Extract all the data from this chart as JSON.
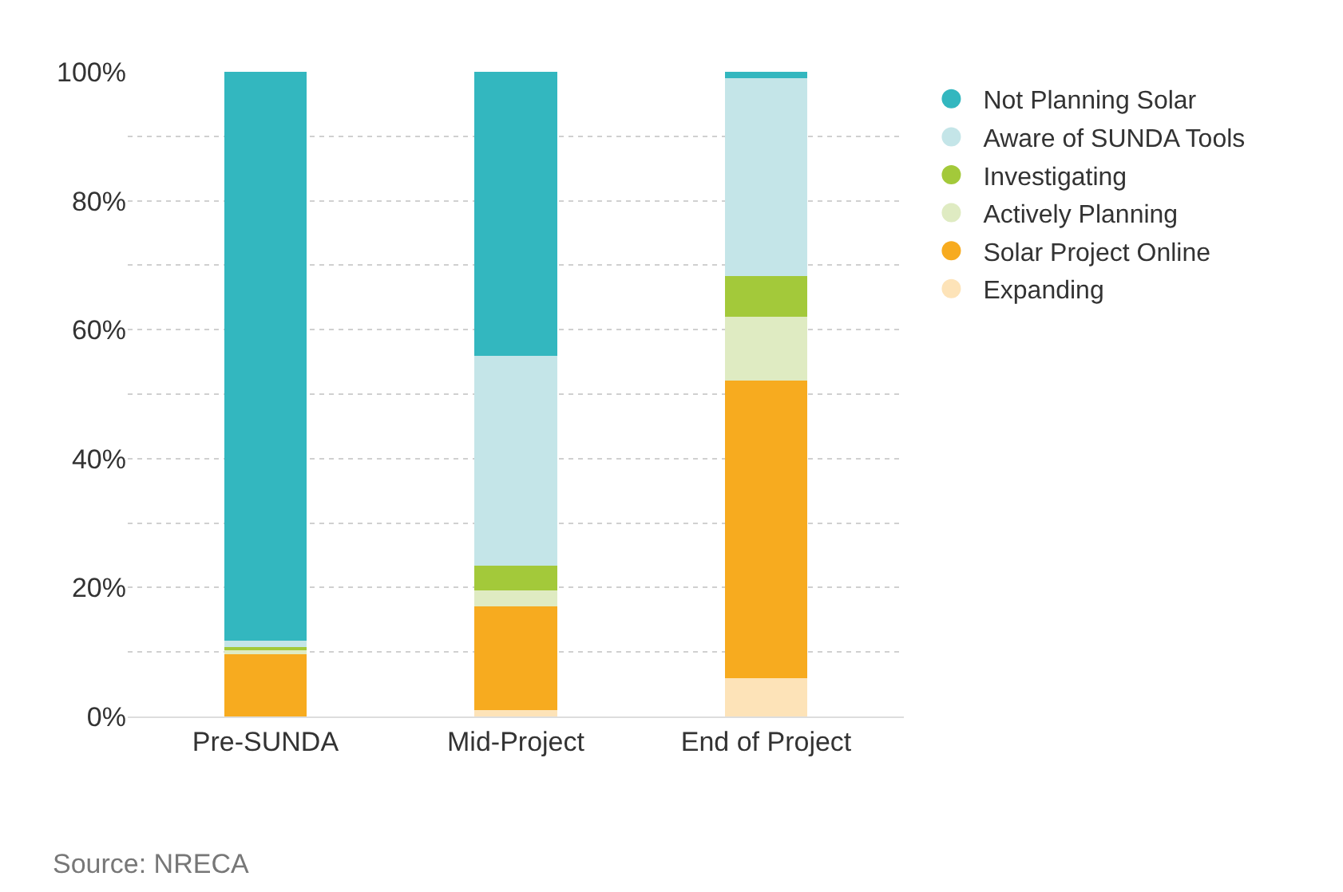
{
  "chart_data": {
    "type": "bar",
    "stacked": true,
    "categories": [
      "Pre-SUNDA",
      "Mid-Project",
      "End of Project"
    ],
    "series": [
      {
        "name": "Expanding",
        "color": "#fde3b8",
        "values": [
          null,
          1.0,
          5.9
        ]
      },
      {
        "name": "Solar Project Online",
        "color": "#f7ab1f",
        "values": [
          9.6,
          16.1,
          46.2
        ]
      },
      {
        "name": "Actively Planning",
        "color": "#dfebc2",
        "values": [
          0.7,
          2.4,
          9.9
        ]
      },
      {
        "name": "Investigating",
        "color": "#a3c93a",
        "values": [
          0.5,
          3.9,
          6.3
        ]
      },
      {
        "name": "Aware of SUNDA Tools",
        "color": "#c4e5e8",
        "values": [
          1.0,
          32.6,
          30.7
        ]
      },
      {
        "name": "Not Planning Solar",
        "color": "#33b7bf",
        "values": [
          88.2,
          44.0,
          1.0
        ]
      }
    ],
    "ylim": [
      0,
      100
    ],
    "yticks": [
      {
        "value": 0,
        "label": "0%"
      },
      {
        "value": 10,
        "label": null
      },
      {
        "value": 20,
        "label": "20%"
      },
      {
        "value": 30,
        "label": null
      },
      {
        "value": 40,
        "label": "40%"
      },
      {
        "value": 50,
        "label": null
      },
      {
        "value": 60,
        "label": "60%"
      },
      {
        "value": 70,
        "label": null
      },
      {
        "value": 80,
        "label": "80%"
      },
      {
        "value": 90,
        "label": null
      },
      {
        "value": 100,
        "label": "100%"
      }
    ],
    "grid": "y",
    "legend": "right",
    "marker": "circle",
    "annotations": [
      "Source: NRECA"
    ]
  }
}
